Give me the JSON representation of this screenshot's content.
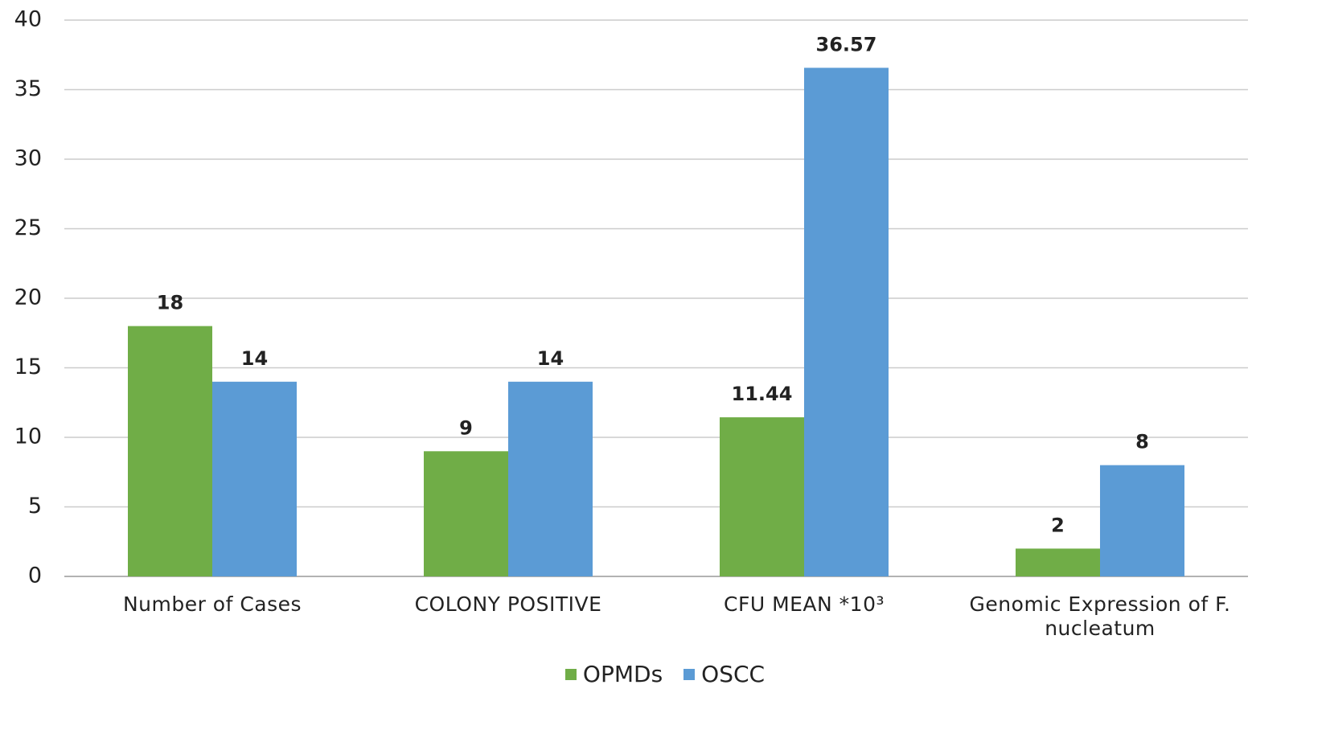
{
  "chart_data": {
    "type": "bar",
    "categories": [
      "Number of Cases",
      "COLONY POSITIVE",
      "CFU MEAN *10³",
      "Genomic Expression of F. nucleatum"
    ],
    "series": [
      {
        "name": "OPMDs",
        "color": "#70ad47",
        "values": [
          18,
          9,
          11.44,
          2
        ]
      },
      {
        "name": "OSCC",
        "color": "#5b9bd5",
        "values": [
          14,
          14,
          36.57,
          8
        ]
      }
    ],
    "ylim": [
      0,
      40
    ],
    "yticks": [
      0,
      5,
      10,
      15,
      20,
      25,
      30,
      35,
      40
    ],
    "grid": true,
    "legend": "bottom"
  }
}
